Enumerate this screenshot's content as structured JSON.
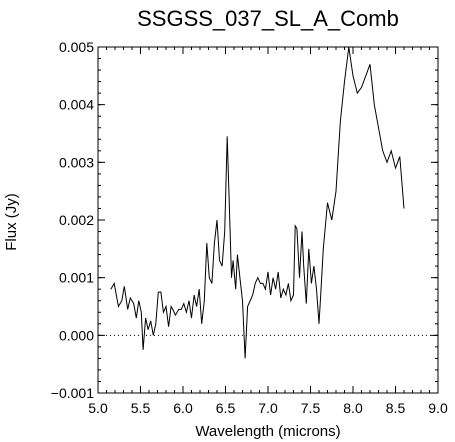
{
  "chart_data": {
    "type": "line",
    "title": "SSGSS_037_SL_A_Comb",
    "xlabel": "Wavelength (microns)",
    "ylabel": "Flux (Jy)",
    "xlim": [
      5.0,
      9.0
    ],
    "ylim": [
      -0.001,
      0.005
    ],
    "x_ticks": [
      5.0,
      5.5,
      6.0,
      6.5,
      7.0,
      7.5,
      8.0,
      8.5,
      9.0
    ],
    "x_tick_labels": [
      "5.0",
      "5.5",
      "6.0",
      "6.5",
      "7.0",
      "7.5",
      "8.0",
      "8.5",
      "9.0"
    ],
    "y_ticks": [
      -0.001,
      0.0,
      0.001,
      0.002,
      0.003,
      0.004,
      0.005
    ],
    "y_tick_labels": [
      "−0.001",
      "0.000",
      "0.001",
      "0.002",
      "0.003",
      "0.004",
      "0.005"
    ],
    "zero_line": true,
    "grid": false,
    "series": [
      {
        "color": "#000000",
        "x": [
          5.15,
          5.19,
          5.24,
          5.28,
          5.31,
          5.35,
          5.38,
          5.42,
          5.45,
          5.48,
          5.51,
          5.53,
          5.56,
          5.59,
          5.62,
          5.65,
          5.68,
          5.71,
          5.74,
          5.77,
          5.8,
          5.83,
          5.86,
          5.88,
          5.91,
          5.95,
          5.98,
          6.01,
          6.04,
          6.07,
          6.1,
          6.13,
          6.16,
          6.19,
          6.22,
          6.25,
          6.28,
          6.31,
          6.34,
          6.37,
          6.4,
          6.43,
          6.46,
          6.49,
          6.52,
          6.54,
          6.57,
          6.59,
          6.62,
          6.64,
          6.67,
          6.7,
          6.73,
          6.76,
          6.79,
          6.82,
          6.85,
          6.88,
          6.91,
          6.94,
          6.97,
          7.0,
          7.03,
          7.06,
          7.09,
          7.12,
          7.15,
          7.18,
          7.21,
          7.24,
          7.27,
          7.3,
          7.32,
          7.34,
          7.37,
          7.4,
          7.42,
          7.45,
          7.48,
          7.51,
          7.54,
          7.57,
          7.6,
          7.62,
          7.65,
          7.7,
          7.75,
          7.8,
          7.85,
          7.9,
          7.95,
          8.0,
          8.05,
          8.1,
          8.15,
          8.2,
          8.25,
          8.3,
          8.35,
          8.4,
          8.45,
          8.5,
          8.55,
          8.6
        ],
        "y": [
          0.0008,
          0.0009,
          0.0005,
          0.0006,
          0.00085,
          0.00045,
          0.00065,
          0.00055,
          0.0003,
          0.0006,
          0.0004,
          -0.00025,
          0.0003,
          0.0001,
          0.00025,
          0.0,
          0.0002,
          0.00075,
          0.00075,
          0.0004,
          0.0005,
          0.00015,
          0.0005,
          0.00045,
          0.00035,
          0.00045,
          0.00045,
          0.00055,
          0.0004,
          0.0006,
          0.0003,
          0.0007,
          0.0005,
          0.0008,
          0.0002,
          0.0006,
          0.0016,
          0.001,
          0.0009,
          0.0016,
          0.002,
          0.0013,
          0.0012,
          0.0018,
          0.00345,
          0.0025,
          0.001,
          0.0013,
          0.0008,
          0.0014,
          0.001,
          0.0006,
          -0.0004,
          0.0005,
          0.0006,
          0.0007,
          0.0009,
          0.001,
          0.0009,
          0.0009,
          0.0008,
          0.0011,
          0.0007,
          0.001,
          0.0008,
          0.0011,
          0.00065,
          0.0008,
          0.0007,
          0.0009,
          0.0006,
          0.0007,
          0.0019,
          0.00185,
          0.001,
          0.0018,
          0.0012,
          0.00055,
          0.0015,
          0.0009,
          0.0012,
          0.0008,
          0.0002,
          0.0007,
          0.0015,
          0.0023,
          0.002,
          0.0025,
          0.0037,
          0.0044,
          0.005,
          0.0045,
          0.0042,
          0.0043,
          0.0045,
          0.0047,
          0.004,
          0.0036,
          0.0032,
          0.003,
          0.0032,
          0.0029,
          0.0031,
          0.0022
        ]
      }
    ]
  }
}
